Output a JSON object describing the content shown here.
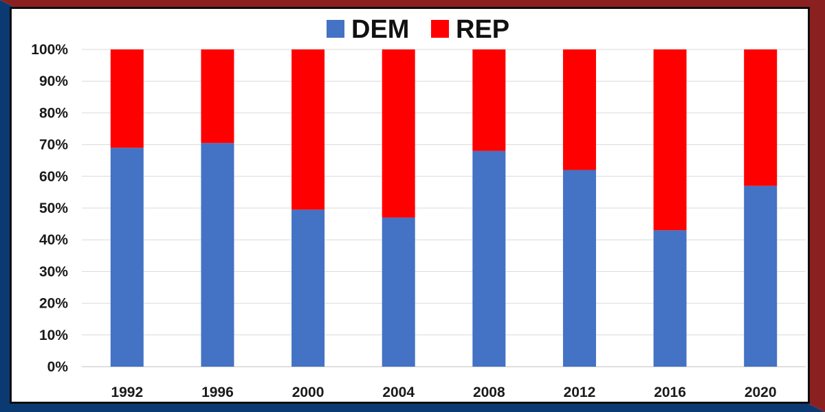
{
  "chart_data": {
    "type": "bar",
    "stacked": true,
    "categories": [
      "1992",
      "1996",
      "2000",
      "2004",
      "2008",
      "2012",
      "2016",
      "2020"
    ],
    "series": [
      {
        "name": "DEM",
        "color": "#4472c4",
        "values": [
          69,
          70.5,
          49.5,
          47,
          68,
          62,
          43,
          57
        ]
      },
      {
        "name": "REP",
        "color": "#ff0000",
        "values": [
          31,
          29.5,
          50.5,
          53,
          32,
          38,
          57,
          43
        ]
      }
    ],
    "ylim": [
      0,
      100
    ],
    "yticks": [
      "0%",
      "10%",
      "20%",
      "30%",
      "40%",
      "50%",
      "60%",
      "70%",
      "80%",
      "90%",
      "100%"
    ],
    "grid": true,
    "legend_position": "top-center"
  },
  "colors": {
    "border_blue": "#0b3a72",
    "border_red": "#8b2020",
    "panel_background": "#ffffff",
    "gridline": "#d9d9d9"
  }
}
